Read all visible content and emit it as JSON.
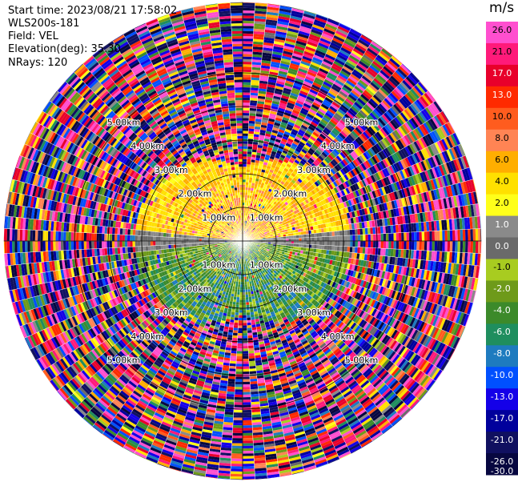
{
  "header": {
    "start_time": "Start time: 2023/08/21 17:58:02",
    "instrument": "WLS200s-181",
    "field": "Field: VEL",
    "elevation": "Elevation(deg): 35.30",
    "nrays": "NRays: 120"
  },
  "chart_data": {
    "type": "heatmap",
    "projection": "polar-ppi",
    "range_rings": [
      {
        "label": "1.00km",
        "radius_km": 1
      },
      {
        "label": "2.00km",
        "radius_km": 2
      },
      {
        "label": "3.00km",
        "radius_km": 3
      },
      {
        "label": "4.00km",
        "radius_km": 4
      },
      {
        "label": "5.00km",
        "radius_km": 5
      }
    ],
    "max_range_km": 7.1,
    "colorbar": {
      "unit": "m/s",
      "ticks": [
        26.0,
        21.0,
        17.0,
        13.0,
        10.0,
        8.0,
        6.0,
        4.0,
        2.0,
        1.0,
        0.0,
        -1.0,
        -2.0,
        -4.0,
        -6.0,
        -8.0,
        -10.0,
        -13.0,
        -17.0,
        -21.0,
        -26.0,
        -30.0
      ],
      "tick_labels": [
        "26.0",
        "21.0",
        "17.0",
        "13.0",
        "10.0",
        "8.0",
        "6.0",
        "4.0",
        "2.0",
        "1.0",
        "0.0",
        "-1.0",
        "-2.0",
        "-4.0",
        "-6.0",
        "-8.0",
        "-10.0",
        "-13.0",
        "-17.0",
        "-21.0",
        "-26.0",
        "-30.0"
      ],
      "colors": [
        "#ff4fcf",
        "#ff1a7a",
        "#e8002b",
        "#ff2a00",
        "#ff5c1e",
        "#ff8454",
        "#ffae00",
        "#ffe000",
        "#ffff1a",
        "#8a8a8a",
        "#6a6a6a",
        "#a8cc20",
        "#6e9a1a",
        "#3c8a2a",
        "#1f8e5e",
        "#1e7bbf",
        "#0050ff",
        "#1400e8",
        "#00009c",
        "#101060",
        "#070740"
      ]
    },
    "near_field": {
      "radius_km": 2.9,
      "upper_half_velocity_ms": [
        1,
        8
      ],
      "lower_half_velocity_ms": [
        -10,
        -1
      ]
    }
  }
}
